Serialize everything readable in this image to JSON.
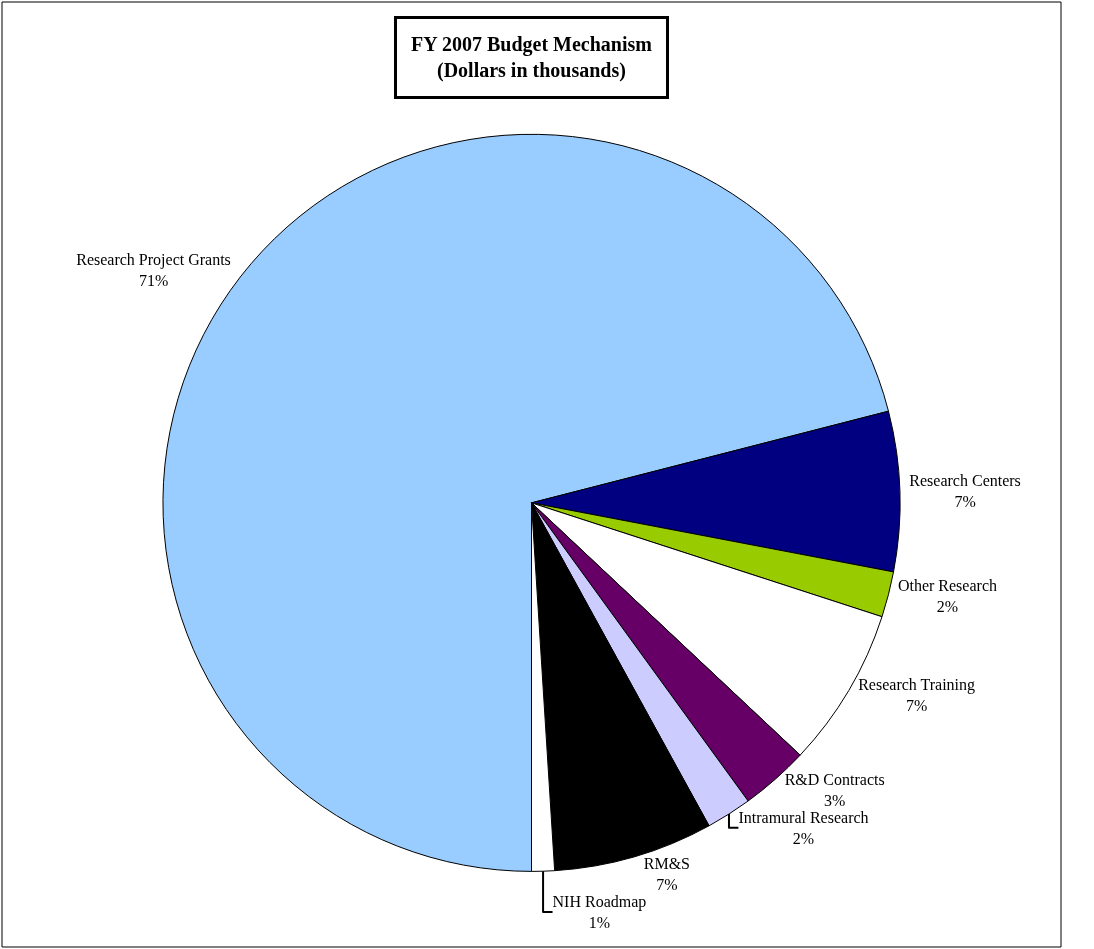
{
  "chart_data": {
    "type": "pie",
    "title": "FY 2007 Budget Mechanism",
    "subtitle": "(Dollars in thousands)",
    "categories": [
      "Research Project Grants",
      "Research Centers",
      "Other Research",
      "Research Training",
      "R&D Contracts",
      "Intramural Research",
      "RM&S",
      "NIH Roadmap"
    ],
    "values": [
      71,
      7,
      2,
      7,
      3,
      2,
      7,
      1
    ],
    "value_labels": [
      "71%",
      "7%",
      "2%",
      "7%",
      "3%",
      "2%",
      "7%",
      "1%"
    ],
    "colors": [
      "#99ccff",
      "#000080",
      "#99cc00",
      "#ffffff",
      "#660066",
      "#ccccff",
      "#000000",
      "#ffffff"
    ],
    "legend": false
  }
}
